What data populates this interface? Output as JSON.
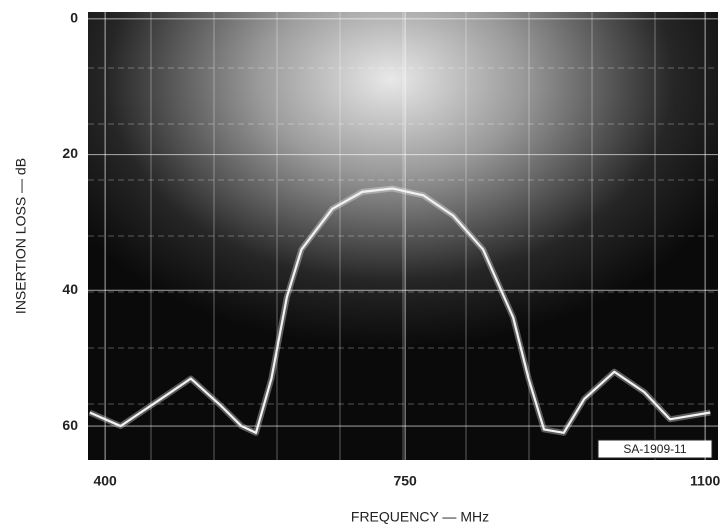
{
  "chart_data": {
    "type": "line",
    "y_label": "INSERTION LOSS — dB",
    "x_label": "FREQUENCY — MHz",
    "annotation": "SA-1909-11",
    "x": [
      382,
      418,
      465,
      500,
      535,
      559,
      576,
      594,
      612,
      629,
      665,
      700,
      735,
      771,
      806,
      841,
      876,
      894,
      912,
      935,
      959,
      994,
      1029,
      1059,
      1106
    ],
    "series": [
      {
        "color": "#f2f2f2",
        "values": [
          58,
          60,
          56,
          53,
          57,
          60,
          61,
          53,
          41,
          34,
          28,
          25.5,
          25,
          26,
          29,
          34,
          44,
          53,
          60.5,
          61,
          56,
          52,
          55,
          59,
          58
        ]
      }
    ],
    "xlim": [
      380,
      1115
    ],
    "xticks": [
      400,
      750,
      1100
    ],
    "ylim": [
      -1,
      65
    ],
    "yticks": [
      0,
      20,
      40,
      60
    ],
    "y_inverted": true,
    "grid": true
  }
}
